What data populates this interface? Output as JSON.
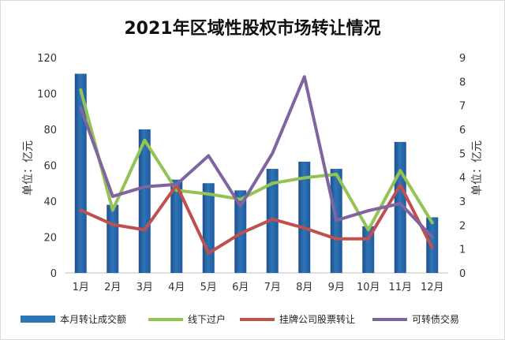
{
  "chart_data": {
    "type": "bar",
    "title": "2021年区域性股权市场转让情况",
    "categories": [
      "1月",
      "2月",
      "3月",
      "4月",
      "5月",
      "6月",
      "7月",
      "8月",
      "9月",
      "10月",
      "11月",
      "12月"
    ],
    "bar_series": {
      "name": "本月转让成交额",
      "axis": "left",
      "color": "#2e75b6",
      "values": [
        111,
        38,
        80,
        52,
        50,
        46,
        58,
        62,
        58,
        26,
        73,
        31
      ]
    },
    "line_series": [
      {
        "name": "线下过户",
        "axis": "left",
        "color": "#92c353",
        "values": [
          102,
          35,
          74,
          46,
          44,
          41,
          50,
          53,
          55,
          24,
          57,
          28
        ]
      },
      {
        "name": "挂牌公司股票转让",
        "axis": "left",
        "color": "#c0504d",
        "values": [
          35,
          27,
          24,
          49,
          11,
          22,
          30,
          25,
          19,
          19,
          49,
          14
        ]
      },
      {
        "name": "可转债交易",
        "axis": "right",
        "color": "#8064a2",
        "values": [
          6.9,
          3.2,
          3.6,
          3.7,
          4.9,
          2.8,
          5.0,
          8.2,
          2.2,
          2.6,
          2.9,
          1.5
        ]
      }
    ],
    "left_axis": {
      "label": "单位：亿元",
      "min": 0,
      "max": 120,
      "step": 20,
      "ticks": [
        "0",
        "20",
        "40",
        "60",
        "80",
        "100",
        "120"
      ]
    },
    "right_axis": {
      "label": "单位：亿元",
      "min": 0,
      "max": 9,
      "step": 1,
      "ticks": [
        "0",
        "1",
        "2",
        "3",
        "4",
        "5",
        "6",
        "7",
        "8",
        "9"
      ]
    },
    "grid": false,
    "legend_position": "bottom"
  }
}
